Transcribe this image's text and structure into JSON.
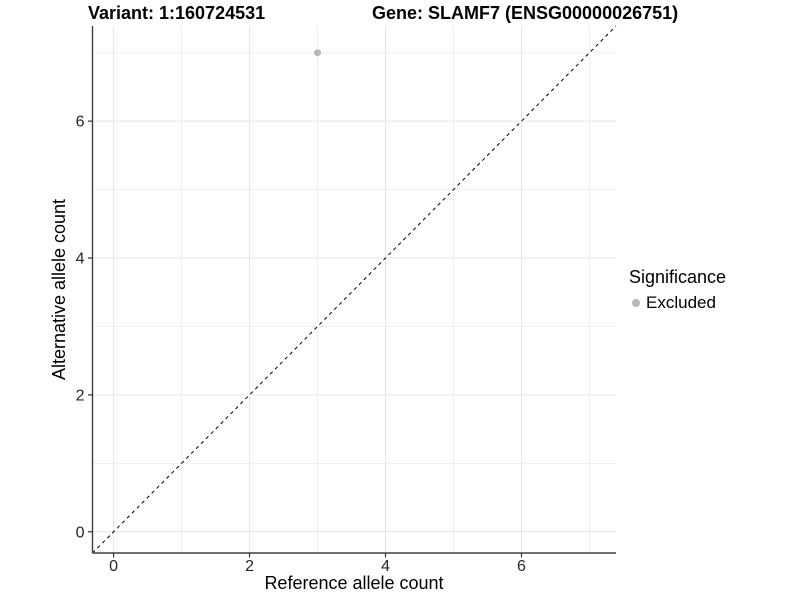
{
  "chart_data": {
    "type": "scatter",
    "title_left": "Variant: 1:160724531",
    "title_right": "Gene: SLAMF7 (ENSG00000026751)",
    "xlabel": "Reference allele count",
    "ylabel": "Alternative allele count",
    "xlim": [
      -0.31,
      7.39
    ],
    "ylim": [
      -0.31,
      7.39
    ],
    "x_ticks": [
      0,
      2,
      4,
      6
    ],
    "y_ticks": [
      0,
      2,
      4,
      6
    ],
    "x_minor": [
      1,
      3,
      5,
      7
    ],
    "y_minor": [
      1,
      3,
      5,
      7
    ],
    "grid": "major+minor",
    "points": [
      {
        "x": 3,
        "y": 7,
        "series": "Excluded"
      }
    ],
    "identity_line": {
      "slope": 1,
      "intercept": 0,
      "style": "dashed"
    },
    "legend": {
      "title": "Significance",
      "position": "right",
      "items": [
        {
          "label": "Excluded",
          "color": "#b8b8b8"
        }
      ]
    },
    "style": {
      "background": "#ffffff",
      "point_color": "#b8b8b8",
      "point_radius": 3.5,
      "grid_major_color": "#e4e4e4",
      "grid_minor_color": "#efefef",
      "axis_line_color": "#404040",
      "tick_color": "#333333",
      "tick_label_color": "#262626",
      "tick_label_size": 16,
      "dashed_line_color": "#000000"
    }
  }
}
